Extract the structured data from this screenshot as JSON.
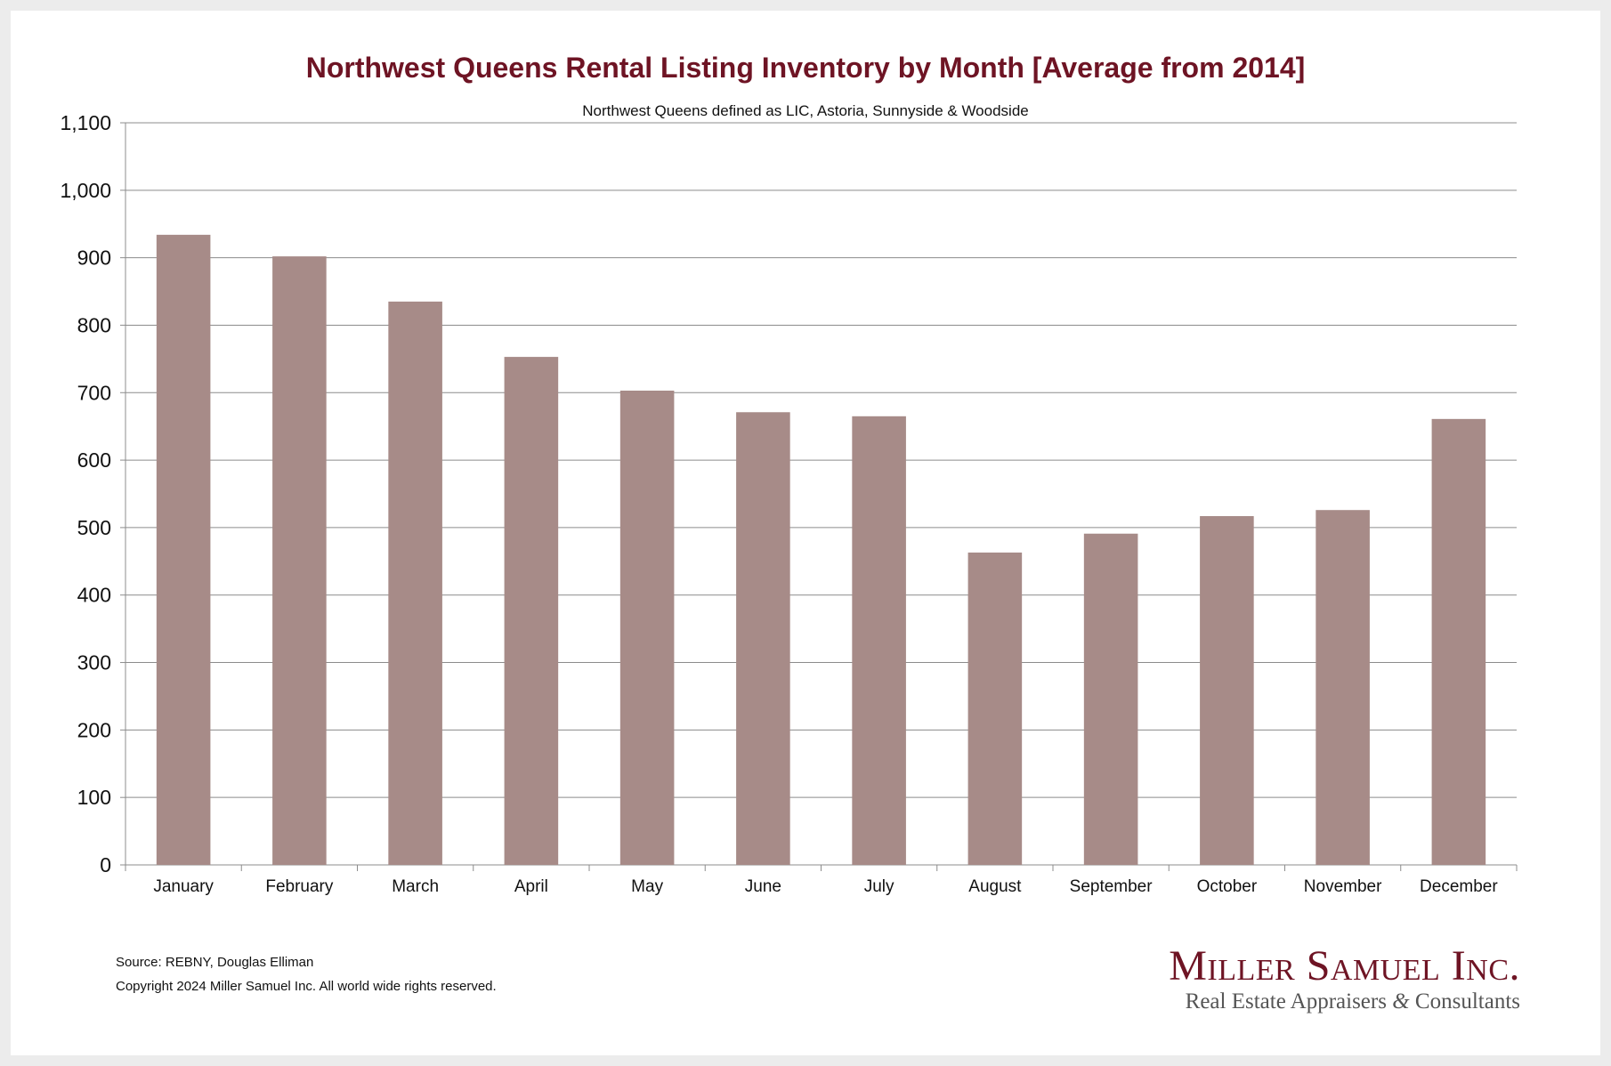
{
  "chart_data": {
    "type": "bar",
    "title": "Northwest Queens Rental Listing Inventory by Month [Average from 2014]",
    "subtitle": "Northwest Queens defined as LIC, Astoria, Sunnyside & Woodside",
    "xlabel": "",
    "ylabel": "",
    "ylim": [
      0,
      1100
    ],
    "yticks": [
      0,
      100,
      200,
      300,
      400,
      500,
      600,
      700,
      800,
      900,
      1000,
      1100
    ],
    "ytick_labels": [
      "0",
      "100",
      "200",
      "300",
      "400",
      "500",
      "600",
      "700",
      "800",
      "900",
      "1,000",
      "1,100"
    ],
    "grid": true,
    "legend": "none",
    "categories": [
      "January",
      "February",
      "March",
      "April",
      "May",
      "June",
      "July",
      "August",
      "September",
      "October",
      "November",
      "December"
    ],
    "values": [
      934,
      902,
      835,
      753,
      703,
      671,
      665,
      463,
      491,
      517,
      526,
      661
    ],
    "bar_color": "#a78b88"
  },
  "footer": {
    "source": "Source: REBNY, Douglas Elliman",
    "copyright": "Copyright 2024 Miller Samuel Inc.  All world wide rights reserved."
  },
  "logo": {
    "name": "Miller Samuel Inc.",
    "tagline_part1": "Real Estate Appraisers ",
    "tagline_amp": "&",
    "tagline_part2": " Consultants"
  }
}
